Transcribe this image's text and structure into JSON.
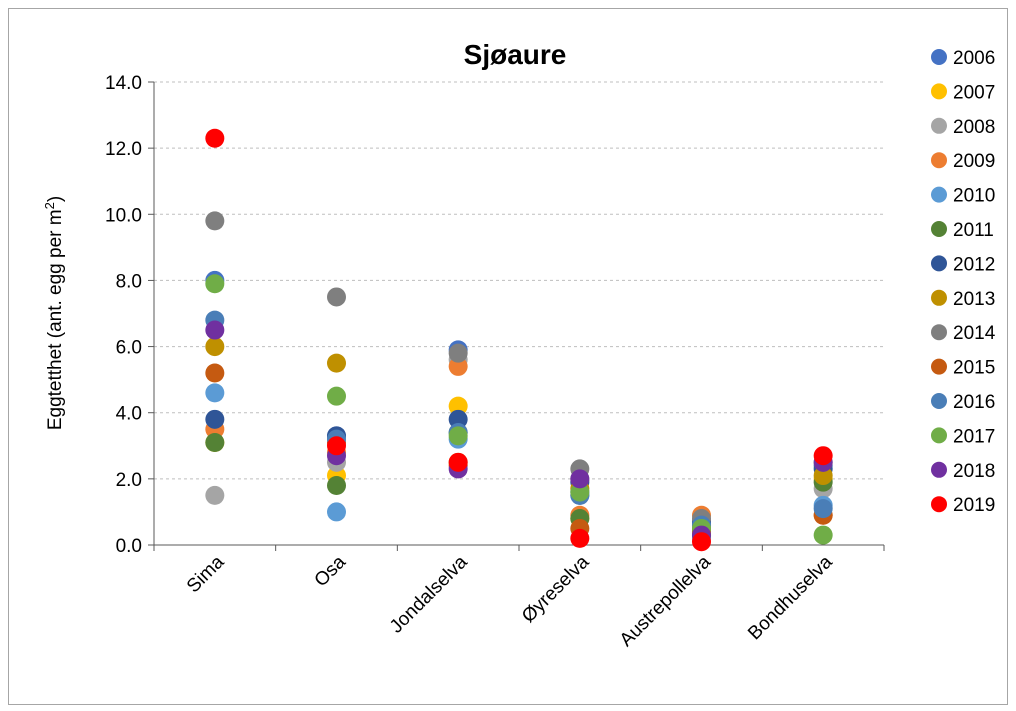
{
  "chart_data": {
    "type": "scatter",
    "title": "Sjøaure",
    "ylabel": "Eggtetthet (ant. egg per m",
    "ylabel_superscript": "2",
    "ylabel_suffix": ")",
    "ylim": [
      0,
      14
    ],
    "yticks": [
      "0.0",
      "2.0",
      "4.0",
      "6.0",
      "8.0",
      "10.0",
      "12.0",
      "14.0"
    ],
    "categories": [
      "Sima",
      "Osa",
      "Jondalselva",
      "Øyreselva",
      "Austrepollelva",
      "Bondhuselva"
    ],
    "grid": "horizontal dashed",
    "legend_position": "right",
    "series": [
      {
        "name": "2006",
        "color": "#4472C4",
        "values": [
          8.0,
          3.3,
          5.9,
          1.5,
          0.7,
          2.4
        ]
      },
      {
        "name": "2007",
        "color": "#FFC000",
        "values": [
          3.1,
          2.1,
          4.2,
          0.8,
          0.5,
          2.0
        ]
      },
      {
        "name": "2008",
        "color": "#A5A5A5",
        "values": [
          1.5,
          2.5,
          5.6,
          2.0,
          0.6,
          1.7
        ]
      },
      {
        "name": "2009",
        "color": "#ED7D31",
        "values": [
          3.5,
          2.8,
          5.4,
          0.9,
          0.9,
          0.9
        ]
      },
      {
        "name": "2010",
        "color": "#5B9BD5",
        "values": [
          4.6,
          1.0,
          3.2,
          1.6,
          0.2,
          1.2
        ]
      },
      {
        "name": "2011",
        "color": "#548235",
        "values": [
          3.1,
          1.8,
          3.4,
          0.8,
          0.3,
          1.9
        ]
      },
      {
        "name": "2012",
        "color": "#2F5597",
        "values": [
          3.8,
          3.3,
          3.8,
          1.9,
          0.7,
          2.3
        ]
      },
      {
        "name": "2013",
        "color": "#BF9000",
        "values": [
          6.0,
          5.5,
          2.5,
          1.7,
          0.5,
          2.1
        ]
      },
      {
        "name": "2014",
        "color": "#7F7F7F",
        "values": [
          9.8,
          7.5,
          5.8,
          2.3,
          0.8,
          2.5
        ]
      },
      {
        "name": "2015",
        "color": "#C55A11",
        "values": [
          5.2,
          3.1,
          2.4,
          0.5,
          0.4,
          0.9
        ]
      },
      {
        "name": "2016",
        "color": "#4A7EB7",
        "values": [
          6.8,
          3.2,
          3.4,
          1.5,
          0.6,
          1.1
        ]
      },
      {
        "name": "2017",
        "color": "#70AD47",
        "values": [
          7.9,
          4.5,
          3.3,
          1.6,
          0.5,
          0.3
        ]
      },
      {
        "name": "2018",
        "color": "#7030A0",
        "values": [
          6.5,
          2.7,
          2.3,
          2.0,
          0.3,
          2.5
        ]
      },
      {
        "name": "2019",
        "color": "#FF0000",
        "values": [
          12.3,
          3.0,
          2.5,
          0.2,
          0.1,
          2.7
        ]
      }
    ]
  }
}
